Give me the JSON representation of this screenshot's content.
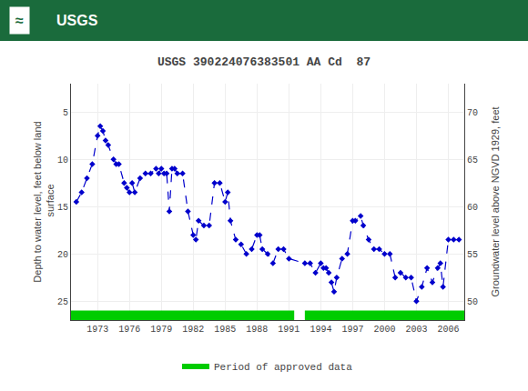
{
  "chart_data": {
    "type": "line",
    "title": "USGS 390224076383501 AA Cd  87",
    "ylabel": "Depth to water level, feet below land\n surface",
    "y2label": "Groundwater level above NGVD 1929, feet",
    "annotations": [
      "≈",
      "USGS"
    ],
    "x": [
      1971.0,
      1971.5,
      1972.0,
      1972.5,
      1973.0,
      1973.25,
      1973.5,
      1973.75,
      1974.0,
      1974.5,
      1974.75,
      1975.0,
      1975.5,
      1975.75,
      1976.0,
      1976.25,
      1976.5,
      1977.0,
      1977.5,
      1978.0,
      1978.5,
      1978.75,
      1979.0,
      1979.25,
      1979.5,
      1979.75,
      1980.0,
      1980.25,
      1980.5,
      1981.0,
      1981.5,
      1982.0,
      1982.25,
      1982.5,
      1983.0,
      1983.5,
      1984.0,
      1984.5,
      1985.0,
      1985.25,
      1985.5,
      1986.0,
      1986.5,
      1987.0,
      1987.5,
      1988.0,
      1988.25,
      1988.5,
      1989.0,
      1989.5,
      1990.0,
      1990.5,
      1991.0,
      1992.5,
      1993.0,
      1993.5,
      1994.0,
      1994.25,
      1994.5,
      1994.75,
      1995.0,
      1995.25,
      1995.5,
      1996.0,
      1996.5,
      1997.0,
      1997.25,
      1997.75,
      1998.0,
      1998.5,
      1999.0,
      1999.5,
      2000.0,
      2000.5,
      2001.0,
      2001.5,
      2002.0,
      2002.5,
      2003.0,
      2003.5,
      2004.0,
      2004.5,
      2005.0,
      2005.25,
      2005.5,
      2006.0,
      2006.5,
      2007.0
    ],
    "series": [
      {
        "color": "#0000cc",
        "line_style": "dashed",
        "marker": "diamond",
        "values": [
          14.5,
          13.5,
          12.0,
          10.5,
          7.5,
          6.5,
          7.0,
          8.0,
          8.5,
          10.0,
          10.5,
          10.5,
          12.5,
          13.0,
          13.5,
          12.5,
          13.5,
          12.0,
          11.5,
          11.5,
          11.0,
          11.5,
          11.0,
          11.5,
          11.5,
          15.5,
          11.0,
          11.0,
          11.5,
          11.5,
          15.5,
          18.0,
          18.5,
          16.5,
          17.0,
          17.0,
          12.5,
          12.5,
          14.5,
          13.5,
          16.5,
          18.5,
          19.0,
          20.0,
          19.5,
          18.0,
          18.0,
          19.5,
          20.0,
          21.0,
          19.5,
          19.5,
          20.5,
          21.0,
          21.0,
          22.0,
          21.0,
          21.5,
          21.5,
          22.0,
          23.0,
          24.0,
          22.5,
          20.5,
          20.0,
          16.5,
          16.5,
          16.0,
          17.0,
          18.5,
          19.5,
          19.5,
          20.0,
          20.0,
          22.5,
          22.0,
          22.5,
          22.5,
          25.0,
          23.5,
          21.5,
          23.0,
          21.5,
          21.0,
          23.5,
          18.5,
          18.5,
          18.5
        ]
      },
      {
        "name": "Period of approved data",
        "type": "span",
        "color": "#00cc00",
        "spans": [
          [
            1970.5,
            1991.5
          ],
          [
            1992.5,
            2007.5
          ]
        ]
      }
    ],
    "xlim": [
      1970.5,
      2007.5
    ],
    "xticks": [
      1973,
      1976,
      1979,
      1982,
      1985,
      1988,
      1991,
      1994,
      1997,
      2000,
      2003,
      2006
    ],
    "ylim": [
      27,
      2
    ],
    "yticks": [
      5,
      10,
      15,
      20,
      25
    ],
    "y2lim": [
      48,
      73
    ],
    "y2ticks": [
      50,
      55,
      60,
      65,
      70
    ],
    "grid": true,
    "legend": "bottom"
  }
}
